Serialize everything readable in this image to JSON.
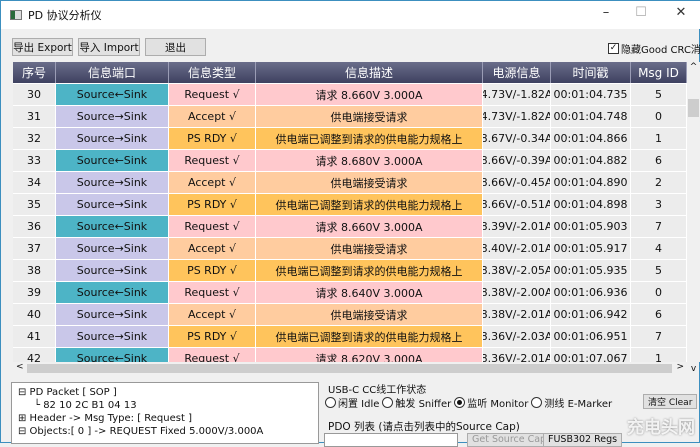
{
  "window": {
    "title": "PD 协议分析仪",
    "minimize": "–",
    "maximize": "☐",
    "close": "✕"
  },
  "toolbar": {
    "export": "导出 Export",
    "import": "导入 Import",
    "exit": "退出",
    "hide_crc": "隐藏Good CRC消息",
    "hide_crc_checked": true
  },
  "table": {
    "headers": [
      "序号",
      "信息端口",
      "信息类型",
      "信息描述",
      "电源信息",
      "时间戳",
      "Msg ID"
    ],
    "rows": [
      [
        "30",
        "Source←Sink",
        "Request √",
        "请求 8.660V 3.000A",
        "4.73V/-1.82A",
        "00:01:04.735",
        "5"
      ],
      [
        "31",
        "Source→Sink",
        "Accept √",
        "供电端接受请求",
        "4.73V/-1.82A",
        "00:01:04.748",
        "0"
      ],
      [
        "32",
        "Source→Sink",
        "PS RDY √",
        "供电端已调整到请求的供电能力规格上",
        "8.67V/-0.34A",
        "00:01:04.866",
        "1"
      ],
      [
        "33",
        "Source←Sink",
        "Request √",
        "请求 8.680V 3.000A",
        "8.66V/-0.39A",
        "00:01:04.882",
        "6"
      ],
      [
        "34",
        "Source→Sink",
        "Accept √",
        "供电端接受请求",
        "8.66V/-0.45A",
        "00:01:04.890",
        "2"
      ],
      [
        "35",
        "Source→Sink",
        "PS RDY √",
        "供电端已调整到请求的供电能力规格上",
        "8.66V/-0.51A",
        "00:01:04.898",
        "3"
      ],
      [
        "36",
        "Source←Sink",
        "Request √",
        "请求 8.660V 3.000A",
        "8.39V/-2.01A",
        "00:01:05.903",
        "7"
      ],
      [
        "37",
        "Source→Sink",
        "Accept √",
        "供电端接受请求",
        "8.40V/-2.01A",
        "00:01:05.917",
        "4"
      ],
      [
        "38",
        "Source→Sink",
        "PS RDY √",
        "供电端已调整到请求的供电能力规格上",
        "8.38V/-2.05A",
        "00:01:05.935",
        "5"
      ],
      [
        "39",
        "Source←Sink",
        "Request √",
        "请求 8.640V 3.000A",
        "8.38V/-2.00A",
        "00:01:06.936",
        "0"
      ],
      [
        "40",
        "Source→Sink",
        "Accept √",
        "供电端接受请求",
        "8.38V/-2.01A",
        "00:01:06.942",
        "6"
      ],
      [
        "41",
        "Source→Sink",
        "PS RDY √",
        "供电端已调整到请求的供电能力规格上",
        "8.36V/-2.03A",
        "00:01:06.951",
        "7"
      ],
      [
        "42",
        "Source←Sink",
        "Request √",
        "请求 8.620V 3.000A",
        "8.36V/-2.01A",
        "00:01:07.067",
        "1"
      ]
    ],
    "colors": {
      "Source←Sink": "#4db4c6",
      "Source→Sink": "#c9c7e9",
      "Request √": "#ffc9cd",
      "Accept √": "#ffcc9f",
      "PS RDY √": "#ffc45c"
    }
  },
  "tree": {
    "items": [
      "⊟ PD Packet [ SOP ]",
      "└ 82 10 2C B1 04 13",
      "⊞ Header -> Msg Type: [ Request ]",
      "⊟ Objects:[ 0 ] -> REQUEST Fixed 5.000V/3.000A"
    ]
  },
  "cc": {
    "title": "USB-C CC线工作状态",
    "modes": [
      {
        "label": "闲置 Idle",
        "selected": false
      },
      {
        "label": "触发 Sniffer",
        "selected": false
      },
      {
        "label": "监听 Monitor",
        "selected": true
      },
      {
        "label": "测线 E-Marker",
        "selected": false
      }
    ],
    "clear": "清空 Clear"
  },
  "pdo": {
    "title": "PDO 列表 (请点击列表中的Source Cap)",
    "get_source_cap": "Get Source Cap",
    "fusb_regs": "FUSB302 Regs"
  },
  "watermark": "充电头网"
}
